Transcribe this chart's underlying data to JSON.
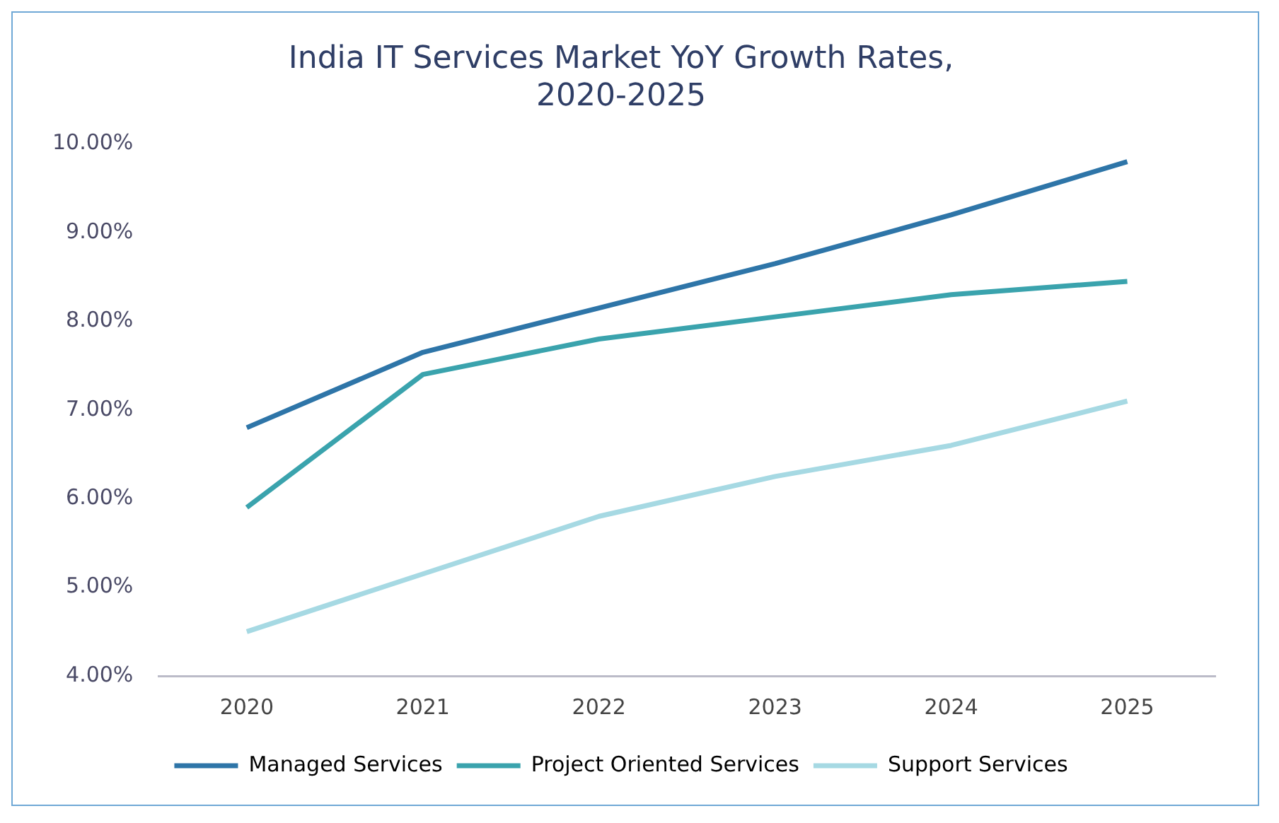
{
  "chart_data": {
    "type": "line",
    "title": "India IT Services Market YoY Growth Rates,\n2020-2025",
    "categories": [
      "2020",
      "2021",
      "2022",
      "2023",
      "2024",
      "2025"
    ],
    "series": [
      {
        "name": "Managed Services",
        "color": "#2e75a8",
        "values": [
          6.8,
          7.65,
          8.15,
          8.65,
          9.2,
          9.8
        ]
      },
      {
        "name": "Project Oriented Services",
        "color": "#3aa3ad",
        "values": [
          5.9,
          7.4,
          7.8,
          8.05,
          8.3,
          8.45
        ]
      },
      {
        "name": "Support Services",
        "color": "#a6d9e3",
        "values": [
          4.5,
          5.15,
          5.8,
          6.25,
          6.6,
          7.1
        ]
      }
    ],
    "ylim": [
      4,
      10
    ],
    "yticks": [
      {
        "value": 4,
        "label": "4.00%"
      },
      {
        "value": 5,
        "label": "5.00%"
      },
      {
        "value": 6,
        "label": "6.00%"
      },
      {
        "value": 7,
        "label": "7.00%"
      },
      {
        "value": 8,
        "label": "8.00%"
      },
      {
        "value": 9,
        "label": "9.00%"
      },
      {
        "value": 10,
        "label": "10.00%"
      }
    ],
    "grid": false,
    "legend": "bottom",
    "marker": "none",
    "line_style": "solid"
  }
}
